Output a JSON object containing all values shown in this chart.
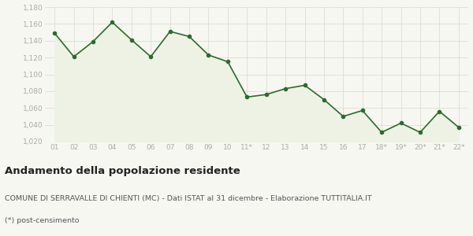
{
  "x_labels": [
    "01",
    "02",
    "03",
    "04",
    "05",
    "06",
    "07",
    "08",
    "09",
    "10",
    "11*",
    "12",
    "13",
    "14",
    "15",
    "16",
    "17",
    "18*",
    "19*",
    "20*",
    "21*",
    "22*"
  ],
  "y_values": [
    1149,
    1121,
    1139,
    1162,
    1141,
    1121,
    1151,
    1145,
    1123,
    1115,
    1073,
    1076,
    1083,
    1087,
    1070,
    1050,
    1057,
    1031,
    1042,
    1031,
    1056,
    1037
  ],
  "ylim": [
    1020,
    1180
  ],
  "yticks": [
    1020,
    1040,
    1060,
    1080,
    1100,
    1120,
    1140,
    1160,
    1180
  ],
  "line_color": "#2d6a2d",
  "fill_color": "#edf2e4",
  "marker": "o",
  "marker_size": 3.0,
  "line_width": 1.2,
  "bg_color": "#f7f7f2",
  "plot_bg_color": "#f7f7f2",
  "grid_color": "#d8d8d0",
  "title": "Andamento della popolazione residente",
  "subtitle": "COMUNE DI SERRAVALLE DI CHIENTI (MC) - Dati ISTAT al 31 dicembre - Elaborazione TUTTITALIA.IT",
  "footnote": "(*) post-censimento",
  "title_fontsize": 9.5,
  "subtitle_fontsize": 6.8,
  "footnote_fontsize": 6.8,
  "tick_fontsize": 6.5,
  "ytick_color": "#aaaaaa",
  "xtick_color": "#aaaaaa"
}
